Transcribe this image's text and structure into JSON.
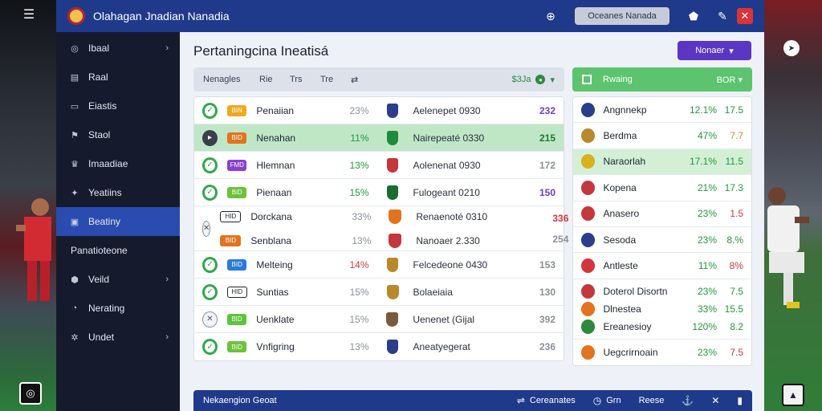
{
  "app": {
    "title": "Olahagan Jnadian Nanadia",
    "search_label": "Oceanes Nanada"
  },
  "page": {
    "title": "Pertaningcina Ineatisá",
    "action_label": "Nonaer"
  },
  "sidebar": {
    "items": [
      {
        "label": "Ibaal",
        "icon": "globe-icon",
        "chevron": true
      },
      {
        "label": "Raal",
        "icon": "calendar-icon",
        "chevron": false
      },
      {
        "label": "Eiastis",
        "icon": "folder-icon",
        "chevron": false
      },
      {
        "label": "Staol",
        "icon": "chart-icon",
        "chevron": false
      },
      {
        "label": "Imaadiae",
        "icon": "trophy-icon",
        "chevron": false
      },
      {
        "label": "Yeatiins",
        "icon": "star-icon",
        "chevron": false
      },
      {
        "label": "Beatiny",
        "icon": "list-icon",
        "chevron": false,
        "active": true
      },
      {
        "label": "Panatioteone",
        "icon": "",
        "chevron": false
      },
      {
        "label": "Veild",
        "icon": "shield-icon",
        "chevron": true
      },
      {
        "label": "Nerating",
        "icon": "clock-icon",
        "chevron": false
      },
      {
        "label": "Undet",
        "icon": "gear-icon",
        "chevron": true
      }
    ]
  },
  "left_table": {
    "headers": [
      "Nenagles",
      "Rie",
      "Trs",
      "Tre"
    ],
    "header_right": "$3Ja",
    "rows": [
      {
        "name": "Penaiian",
        "badge": "BIN",
        "badge_color": "#f0a81e",
        "pct": "23%",
        "pct_style": "muted",
        "crest_color": "#2c3d8a",
        "team": "Aelenepet 0930",
        "score": "232",
        "score_color": "#6b3fc9",
        "status": "check"
      },
      {
        "name": "Nenahan",
        "badge": "BID",
        "badge_color": "#e2731f",
        "pct": "11%",
        "pct_style": "green",
        "crest_color": "#1f8a3a",
        "team": "Nairepeaté 0330",
        "score": "215",
        "score_color": "#1f7a2e",
        "status": "dark",
        "highlight": true
      },
      {
        "name": "Hlemnan",
        "badge": "FMD",
        "badge_color": "#8a3fd0",
        "pct": "13%",
        "pct_style": "green",
        "crest_color": "#c4373c",
        "team": "Aolenenat 0930",
        "score": "172",
        "score_color": "#8a8f9c",
        "status": "check"
      },
      {
        "name": "Pienaan",
        "badge": "BiD",
        "badge_color": "#6cc23a",
        "pct": "15%",
        "pct_style": "green",
        "crest_color": "#1b6b2c",
        "team": "Fulogeant 0210",
        "score": "150",
        "score_color": "#6b3fc9",
        "status": "check"
      },
      {
        "name": "Dorckana",
        "badge": "HID",
        "badge_color": "#ffffff",
        "pct": "33%",
        "pct_style": "muted",
        "crest_color": "#e2731f",
        "team": "Renaenoté 0310",
        "score": "336",
        "score_color": "#d2373e",
        "status": "muted",
        "second": {
          "name": "Senblana",
          "badge": "BID",
          "badge_color": "#e2731f",
          "pct": "13%",
          "pct_style": "muted",
          "crest_color": "#c4373c",
          "team": "Nanoaer 2.330",
          "score": "254",
          "score_color": "#8a8f9c"
        }
      },
      {
        "name": "Melteing",
        "badge": "BID",
        "badge_color": "#2a7ad8",
        "pct": "14%",
        "pct_style": "red",
        "crest_color": "#b7892a",
        "team": "Felcedeone 0430",
        "score": "153",
        "score_color": "#8a8f9c",
        "status": "check-thin"
      },
      {
        "name": "Suntias",
        "badge": "HID",
        "badge_color": "#ffffff",
        "pct": "15%",
        "pct_style": "muted",
        "crest_color": "#b7892a",
        "team": "Bolaeiaia",
        "score": "130",
        "score_color": "#8a8f9c",
        "status": "check"
      },
      {
        "name": "Uenklate",
        "badge": "BID",
        "badge_color": "#5cc43a",
        "pct": "15%",
        "pct_style": "muted",
        "crest_color": "#7a5a3e",
        "team": "Uenenet (Gijal",
        "score": "392",
        "score_color": "#8a8f9c",
        "status": "muted"
      },
      {
        "name": "Vnfigring",
        "badge": "BID",
        "badge_color": "#6cc23a",
        "pct": "13%",
        "pct_style": "muted",
        "crest_color": "#2c3d8a",
        "team": "Aneatyegerat",
        "score": "236",
        "score_color": "#8a8f9c",
        "status": "check"
      }
    ]
  },
  "right_table": {
    "header_label": "Rwaing",
    "header_right": "BOR",
    "rows": [
      {
        "name": "Angnnekp",
        "v1": "12.1%",
        "v2": "17.5",
        "v2_style": "green",
        "crest_color": "#2c3d8a"
      },
      {
        "name": "Berdma",
        "v1": "47%",
        "v2": "7.7",
        "v2_style": "orange",
        "crest_color": "#b7892a"
      },
      {
        "name": "Naraorlah",
        "v1": "17.1%",
        "v2": "11.5",
        "v2_style": "green",
        "crest_color": "#d8b11c",
        "highlight": true
      },
      {
        "name": "Kopena",
        "v1": "21%",
        "v2": "17.3",
        "v2_style": "green",
        "crest_color": "#c4373c"
      },
      {
        "name": "Anasero",
        "v1": "23%",
        "v2": "1.5",
        "v2_style": "red",
        "crest_color": "#c4373c"
      },
      {
        "name": "Sesoda",
        "v1": "23%",
        "v2": "8.%",
        "v2_style": "green",
        "crest_color": "#2c3d8a"
      },
      {
        "name": "Antleste",
        "v1": "11%",
        "v2": "8%",
        "v2_style": "red",
        "crest_color": "#d2373e"
      },
      {
        "name": "Doterol Disortn",
        "v1": "23%",
        "v2": "7.5",
        "v2_style": "green",
        "crest_color": "#c4373c",
        "group_start": true
      },
      {
        "name": "Dlnestea",
        "v1": "33%",
        "v2": "15.5",
        "v2_style": "green",
        "crest_color": "#e2731f"
      },
      {
        "name": "Ereanesioy",
        "v1": "120%",
        "v2": "8.2",
        "v2_style": "green",
        "crest_color": "#2c8a3a",
        "group_end": true
      },
      {
        "name": "Uegcrirnoain",
        "v1": "23%",
        "v2": "7.5",
        "v2_style": "red",
        "crest_color": "#e2731f"
      }
    ]
  },
  "bottombar": {
    "left_label": "Nekaengion Geoat",
    "items": [
      {
        "label": "Cereanates",
        "icon": "⇌"
      },
      {
        "label": "Grn",
        "icon": "◷"
      },
      {
        "label": "Reese",
        "icon": ""
      },
      {
        "label": "",
        "icon": "⚓"
      },
      {
        "label": "",
        "icon": "✕"
      },
      {
        "label": "",
        "icon": "▮"
      }
    ]
  }
}
